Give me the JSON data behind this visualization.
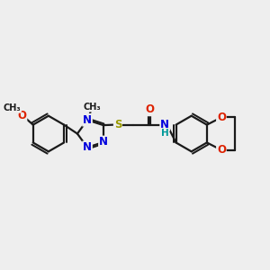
{
  "bg_color": "#eeeeee",
  "bond_color": "#1a1a1a",
  "bond_width": 1.6,
  "atom_colors": {
    "N": "#0000dd",
    "O": "#dd2200",
    "S": "#999900",
    "H": "#009999"
  },
  "font_size": 8.5,
  "fig_size": [
    3.0,
    3.0
  ],
  "dpi": 100
}
